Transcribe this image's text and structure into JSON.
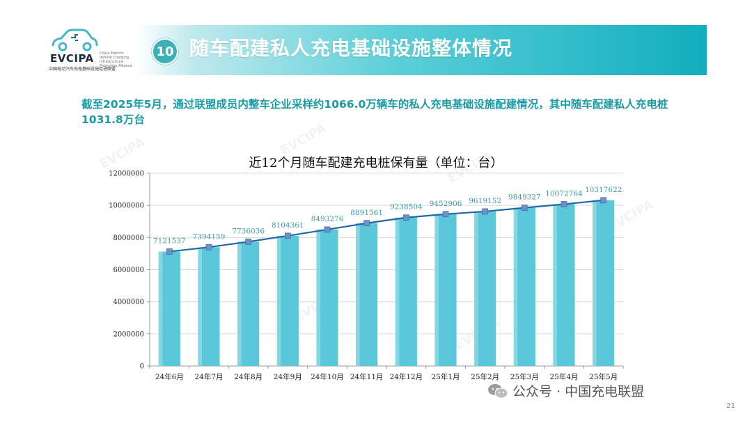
{
  "header": {
    "logo_name": "EVCIPA",
    "logo_en": "China Electric Vehicle Charging Infrastructure Promotion Alliance",
    "logo_cn": "中国电动汽车充电基础设施促进联盟",
    "badge": "10",
    "title": "随车配建私人充电基础设施整体情况"
  },
  "description": "截至2025年5月，通过联盟成员内整车企业采样约1066.0万辆车的私人充电基础设施配建情况，其中随车配建私人充电桩1031.8万台",
  "chart_data": {
    "type": "bar",
    "title": "近12个月随车配建充电桩保有量（单位：台）",
    "categories": [
      "24年6月",
      "24年7月",
      "24年8月",
      "24年9月",
      "24年10月",
      "24年11月",
      "24年12月",
      "25年1月",
      "25年2月",
      "25年3月",
      "25年4月",
      "25年5月"
    ],
    "values": [
      7121537,
      7394159,
      7736036,
      8104361,
      8493276,
      8891561,
      9238504,
      9452906,
      9619152,
      9849327,
      10072764,
      10317622
    ],
    "overlay_line": true,
    "ylim": [
      0,
      12000000
    ],
    "yticks": [
      "0",
      "2000000",
      "4000000",
      "6000000",
      "8000000",
      "10000000",
      "12000000"
    ],
    "grid": true,
    "colors": {
      "bar": "#5ac8d8",
      "line": "#1f6aa5",
      "marker": "#6f8fc8",
      "label": "#3a9aa8"
    }
  },
  "footer": {
    "text": "公众号 · 中国充电联盟",
    "page": "21"
  },
  "watermark": "EVCIPA"
}
